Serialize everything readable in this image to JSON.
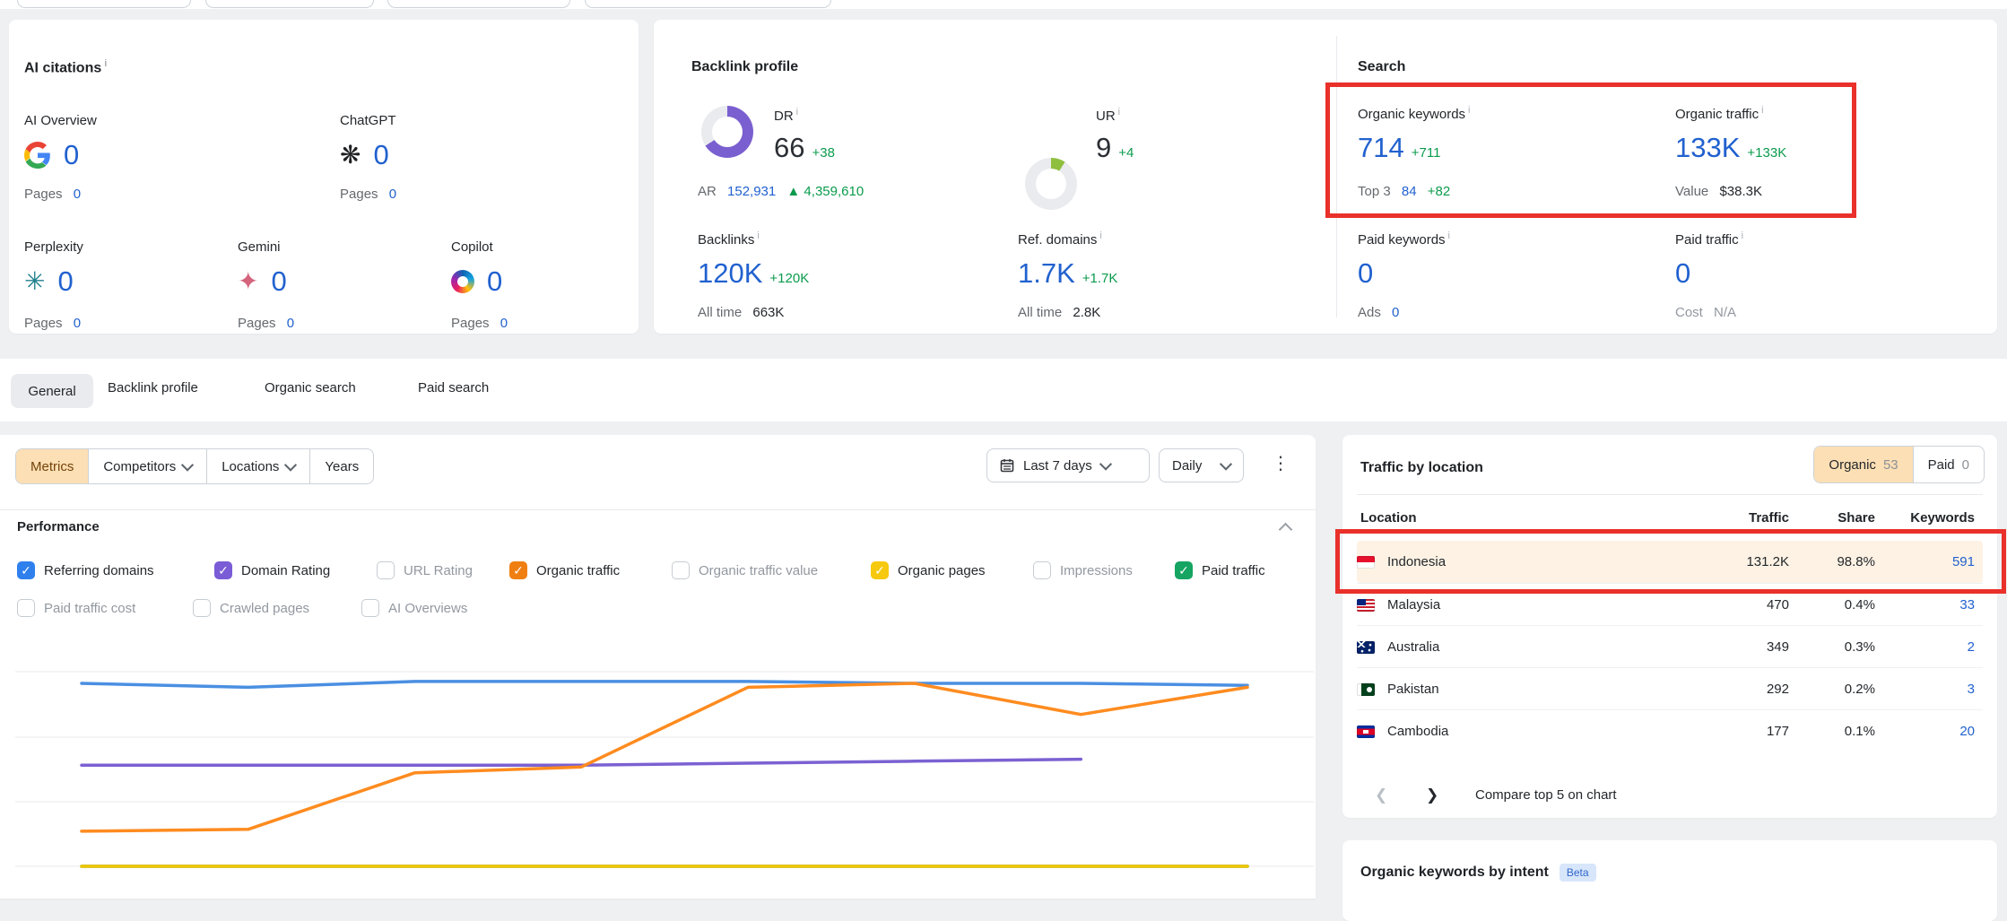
{
  "annotations": {
    "color": "#e9302a"
  },
  "icons": {
    "check": "✓",
    "kebab": "⋮",
    "prev": "❮",
    "next": "❯",
    "chatgpt_glyph": "❋",
    "perplexity_glyph": "✳",
    "gemini_glyph": "✦",
    "up_triangle": "▲"
  },
  "ai_citations": {
    "title": "AI citations",
    "pages_label": "Pages",
    "items": [
      {
        "name": "AI Overview",
        "icon": "google-icon",
        "value": "0",
        "pages_value": "0"
      },
      {
        "name": "ChatGPT",
        "icon": "chatgpt-icon",
        "value": "0",
        "pages_value": "0"
      },
      {
        "name": "Perplexity",
        "icon": "perplexity-icon",
        "value": "0",
        "pages_value": "0"
      },
      {
        "name": "Gemini",
        "icon": "gemini-icon",
        "value": "0",
        "pages_value": "0"
      },
      {
        "name": "Copilot",
        "icon": "copilot-icon",
        "value": "0",
        "pages_value": "0"
      }
    ]
  },
  "backlink_profile": {
    "title": "Backlink profile",
    "dr": {
      "label": "DR",
      "value": "66",
      "delta": "+38",
      "percent": 66,
      "color": "#7a5fd0",
      "ar_label": "AR",
      "ar_value": "152,931",
      "ar_delta": "▲ 4,359,610"
    },
    "ur": {
      "label": "UR",
      "value": "9",
      "delta": "+4",
      "percent": 9,
      "color": "#8fbf3f"
    },
    "backlinks": {
      "label": "Backlinks",
      "value": "120K",
      "delta": "+120K",
      "alltime_label": "All time",
      "alltime_value": "663K"
    },
    "ref_domains": {
      "label": "Ref. domains",
      "value": "1.7K",
      "delta": "+1.7K",
      "alltime_label": "All time",
      "alltime_value": "2.8K"
    }
  },
  "search": {
    "title": "Search",
    "organic_keywords": {
      "label": "Organic keywords",
      "value": "714",
      "delta": "+711",
      "sub_label": "Top 3",
      "sub_value": "84",
      "sub_delta": "+82"
    },
    "organic_traffic": {
      "label": "Organic traffic",
      "value": "133K",
      "delta": "+133K",
      "sub_label": "Value",
      "sub_value": "$38.3K"
    },
    "paid_keywords": {
      "label": "Paid keywords",
      "value": "0",
      "sub_label": "Ads",
      "sub_value": "0"
    },
    "paid_traffic": {
      "label": "Paid traffic",
      "value": "0",
      "sub_label": "Cost",
      "sub_value": "N/A"
    }
  },
  "tabs": {
    "active": "General",
    "items": [
      "General",
      "Backlink profile",
      "Organic search",
      "Paid search"
    ]
  },
  "toolbar": {
    "metrics": "Metrics",
    "competitors": "Competitors",
    "locations": "Locations",
    "years": "Years",
    "date_range": "Last 7 days",
    "granularity": "Daily"
  },
  "performance": {
    "title": "Performance",
    "filters": [
      {
        "label": "Referring domains",
        "checked": true,
        "color": "#2f80ed"
      },
      {
        "label": "Domain Rating",
        "checked": true,
        "color": "#7a5cd6"
      },
      {
        "label": "URL Rating",
        "checked": false,
        "color": ""
      },
      {
        "label": "Organic traffic",
        "checked": true,
        "color": "#f07f12"
      },
      {
        "label": "Organic traffic value",
        "checked": false,
        "color": ""
      },
      {
        "label": "Organic pages",
        "checked": true,
        "color": "#f6c90e"
      },
      {
        "label": "Impressions",
        "checked": false,
        "color": ""
      },
      {
        "label": "Paid traffic",
        "checked": true,
        "color": "#16a463"
      },
      {
        "label": "Paid traffic cost",
        "checked": false,
        "color": ""
      },
      {
        "label": "Crawled pages",
        "checked": false,
        "color": ""
      },
      {
        "label": "AI Overviews",
        "checked": false,
        "color": ""
      }
    ]
  },
  "chart_data": {
    "type": "line",
    "title": "Performance",
    "xlabel": "",
    "ylabel": "",
    "x": [
      1,
      2,
      3,
      4,
      5,
      6,
      7,
      8
    ],
    "x_tick_labels_visible": false,
    "ylim": [
      0,
      105
    ],
    "gridline_values": [
      0,
      33,
      67,
      100
    ],
    "series": [
      {
        "name": "Referring domains",
        "color": "#4a8fe2",
        "values": [
          94,
          92,
          95,
          95,
          95,
          94,
          94,
          93
        ]
      },
      {
        "name": "Domain Rating",
        "color": "#7b61d2",
        "values": [
          52,
          52,
          52,
          52,
          53,
          54,
          55,
          null
        ]
      },
      {
        "name": "Paid traffic",
        "color": "#16a463",
        "values": [
          0,
          0,
          0,
          0,
          0,
          0,
          0,
          0
        ]
      },
      {
        "name": "Organic pages",
        "color": "#f2c400",
        "values": [
          0,
          0,
          0,
          0,
          0,
          0,
          0,
          0
        ]
      },
      {
        "name": "Organic traffic",
        "color": "#ff8b1f",
        "values": [
          18,
          19,
          48,
          51,
          92,
          94,
          78,
          92
        ]
      }
    ]
  },
  "traffic": {
    "title": "Traffic by location",
    "toggle": {
      "organic_label": "Organic",
      "organic_count": "53",
      "paid_label": "Paid",
      "paid_count": "0"
    },
    "columns": [
      "Location",
      "Traffic",
      "Share",
      "Keywords"
    ],
    "rows": [
      {
        "location": "Indonesia",
        "flag": "indonesia-flag",
        "traffic": "131.2K",
        "share": "98.8%",
        "keywords": "591",
        "highlighted": true
      },
      {
        "location": "Malaysia",
        "flag": "malaysia-flag",
        "traffic": "470",
        "share": "0.4%",
        "keywords": "33",
        "highlighted": false
      },
      {
        "location": "Australia",
        "flag": "australia-flag",
        "traffic": "349",
        "share": "0.3%",
        "keywords": "2",
        "highlighted": false
      },
      {
        "location": "Pakistan",
        "flag": "pakistan-flag",
        "traffic": "292",
        "share": "0.2%",
        "keywords": "3",
        "highlighted": false
      },
      {
        "location": "Cambodia",
        "flag": "cambodia-flag",
        "traffic": "177",
        "share": "0.1%",
        "keywords": "20",
        "highlighted": false
      }
    ],
    "compare_label": "Compare top 5 on chart"
  },
  "intent": {
    "title": "Organic keywords by intent",
    "badge": "Beta"
  }
}
